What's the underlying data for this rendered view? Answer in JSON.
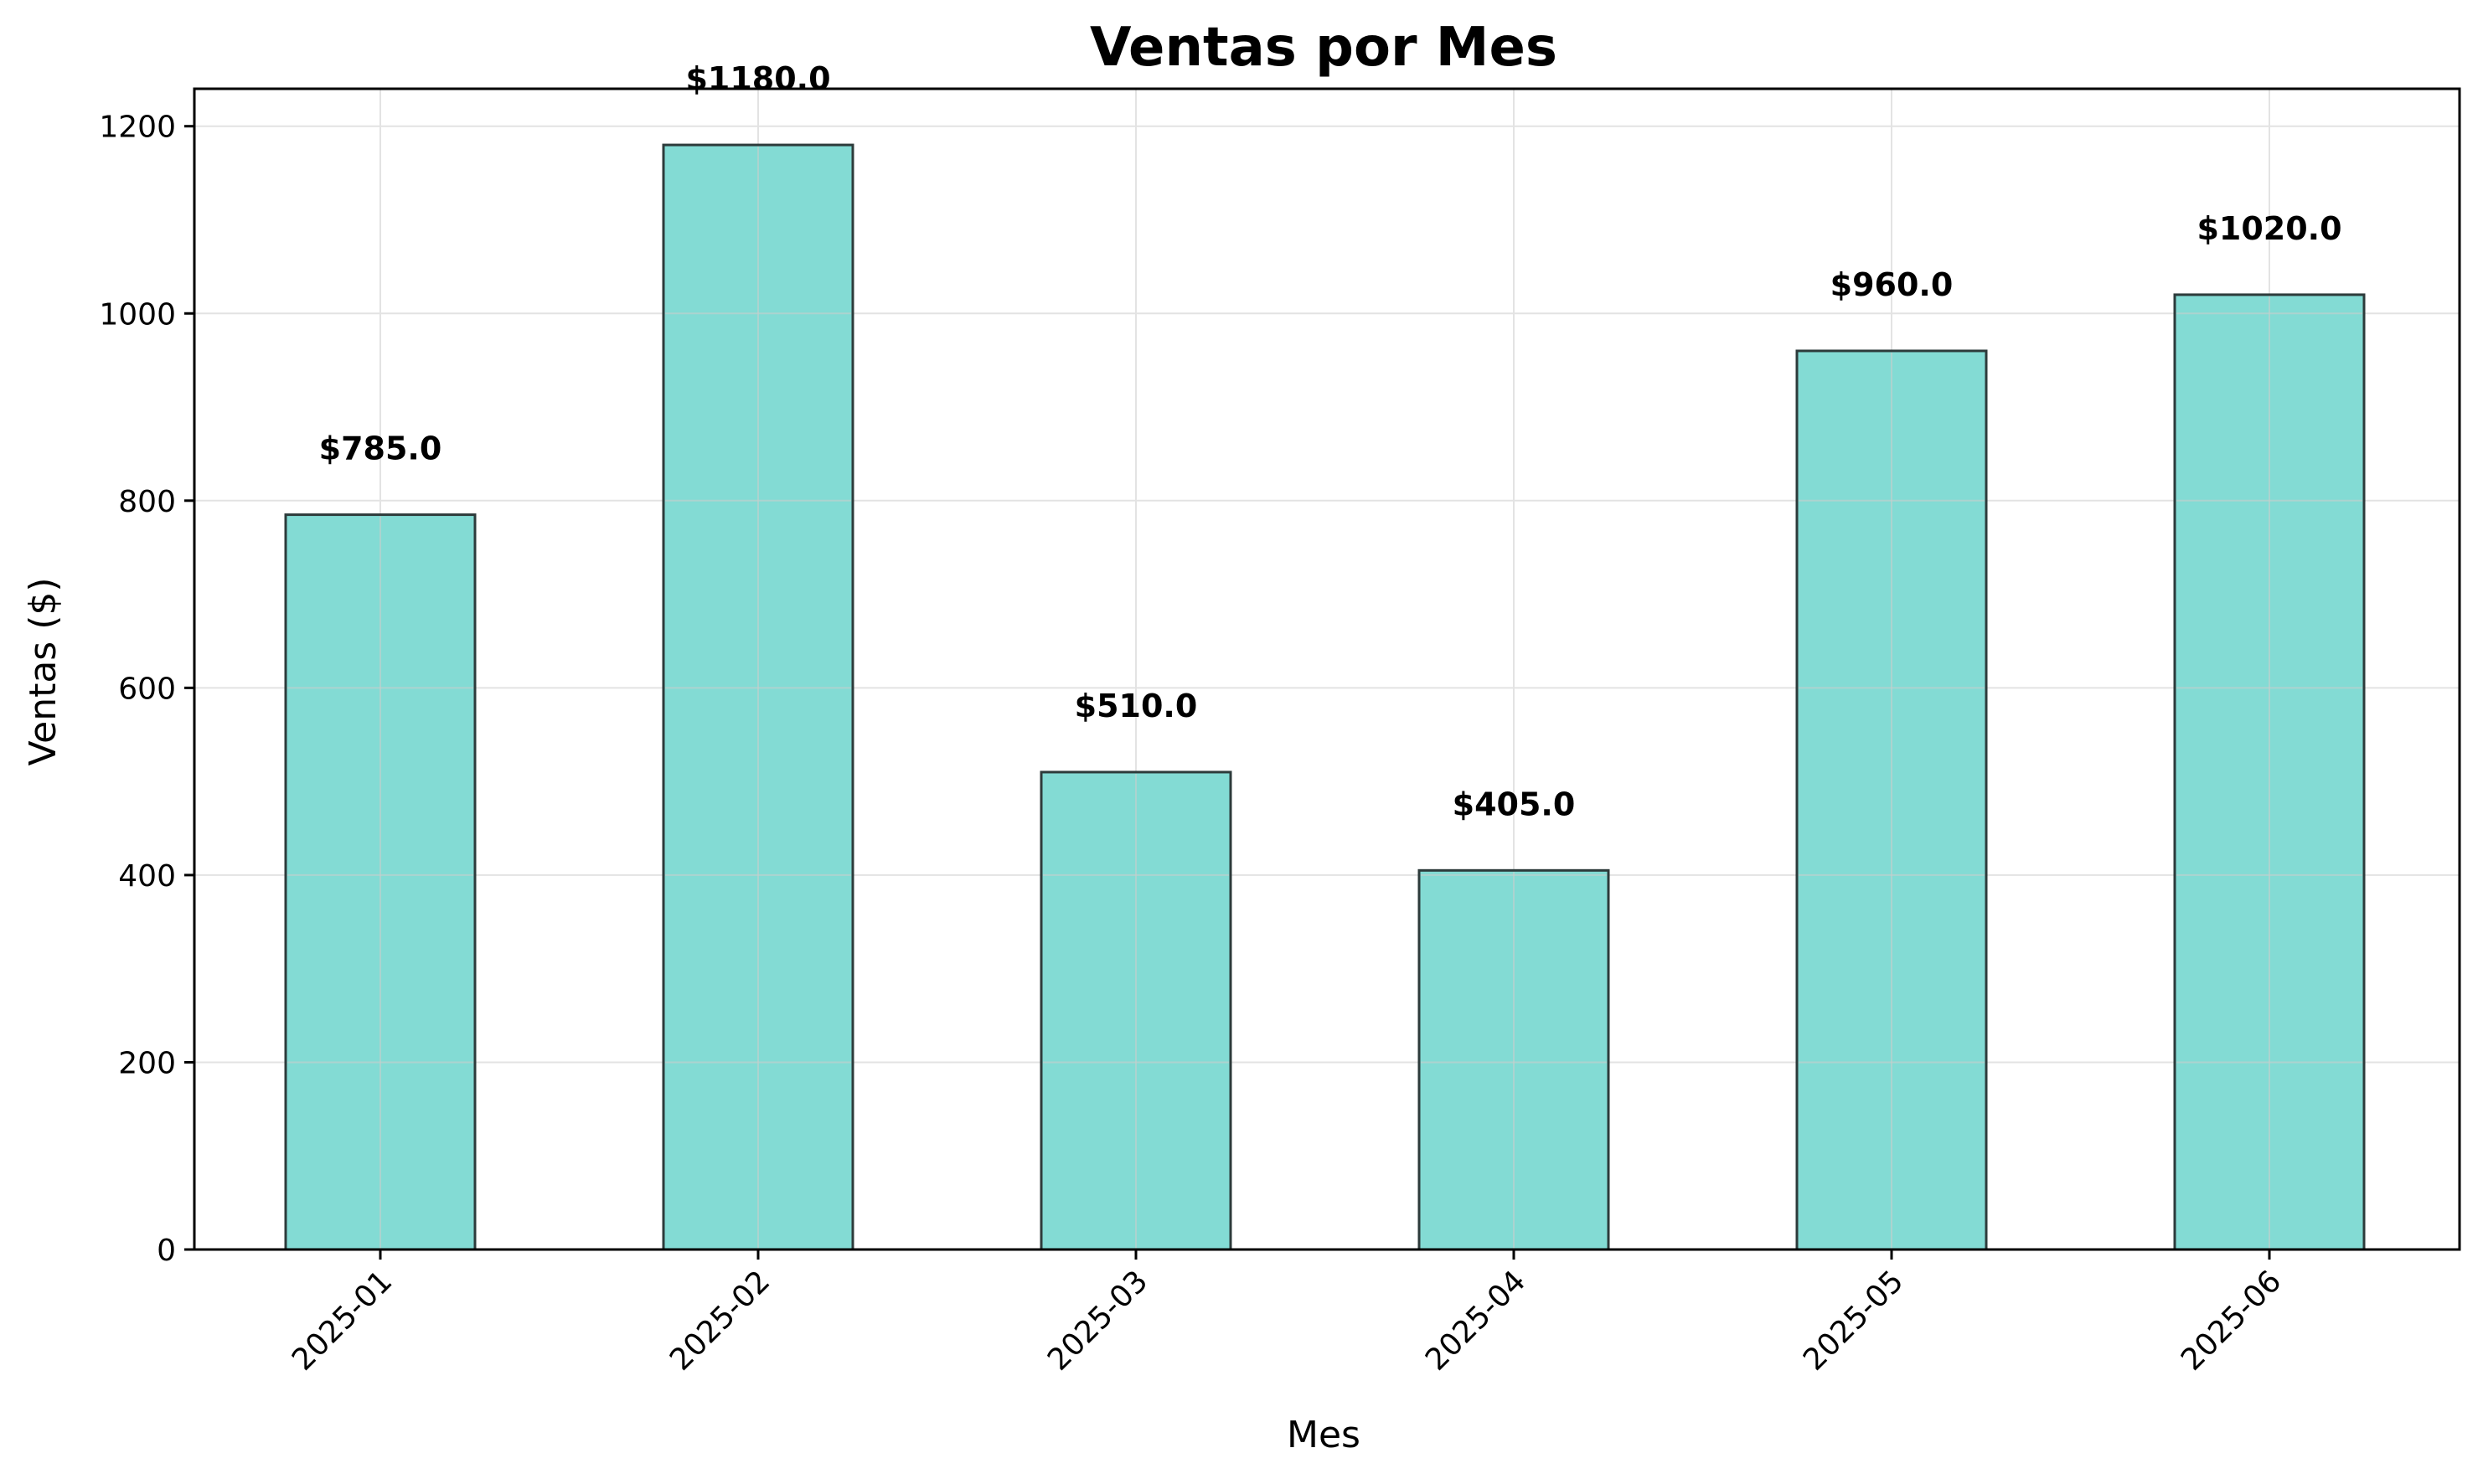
{
  "chart_data": {
    "type": "bar",
    "title": "Ventas por Mes",
    "xlabel": "Mes",
    "ylabel": "Ventas ($)",
    "categories": [
      "2025-01",
      "2025-02",
      "2025-03",
      "2025-04",
      "2025-05",
      "2025-06"
    ],
    "values": [
      785.0,
      1180.0,
      510.0,
      405.0,
      960.0,
      1020.0
    ],
    "data_labels": [
      "$785.0",
      "$1180.0",
      "$510.0",
      "$405.0",
      "$960.0",
      "$1020.0"
    ],
    "ylim": [
      0,
      1240
    ],
    "yticks": [
      0,
      200,
      400,
      600,
      800,
      1000,
      1200
    ],
    "ytick_labels": [
      "0",
      "200",
      "400",
      "600",
      "800",
      "1000",
      "1200"
    ],
    "grid": true,
    "xtick_rotation": 45,
    "colors": {
      "bar_fill": "#83dbd4",
      "bar_edge": "#2d3b3b",
      "grid": "#e3e3e3",
      "axis": "#000000"
    }
  }
}
